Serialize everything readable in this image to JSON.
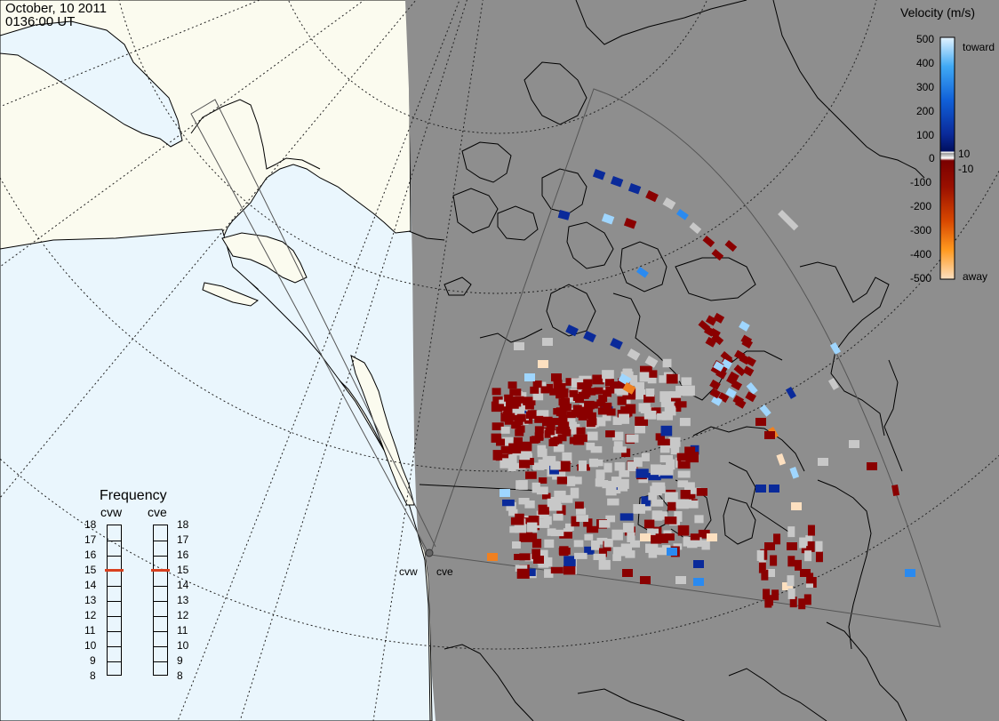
{
  "header": {
    "date": "October, 10 2011",
    "time": "0136:00 UT"
  },
  "radars": {
    "west": "cvw",
    "east": "cve"
  },
  "frequency_panel": {
    "title": "Frequency",
    "radars": [
      "cvw",
      "cve"
    ],
    "ticks": [
      18,
      17,
      16,
      15,
      14,
      13,
      12,
      11,
      10,
      9,
      8
    ],
    "selected": {
      "cvw": 15,
      "cve": 15
    },
    "marker_color": "#d9401f"
  },
  "velocity_scale": {
    "title": "Velocity (m/s)",
    "ticks": [
      "500",
      "400",
      "300",
      "200",
      "100",
      "10",
      "0",
      "-10",
      "-100",
      "-200",
      "-300",
      "-400",
      "-500"
    ],
    "toward_label": "toward",
    "away_label": "away"
  },
  "colors": {
    "ocean": "#eaf6fd",
    "land": "#fbfbef",
    "night_side": "#8e8e8e",
    "ground_scatter": "#c8c8c8",
    "coastline": "#000000",
    "grid": "#222222",
    "fov": "#555555"
  }
}
